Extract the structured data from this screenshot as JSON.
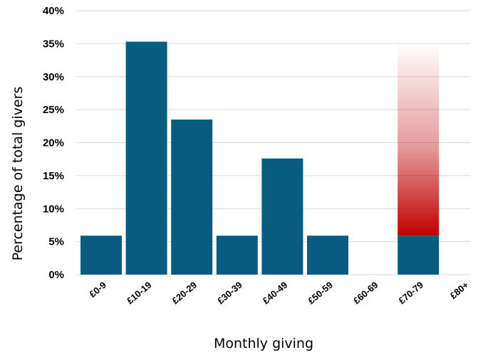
{
  "chart_data": {
    "type": "bar",
    "categories": [
      "£0-9",
      "£10-19",
      "£20-29",
      "£30-39",
      "£40-49",
      "£50-59",
      "£60-69",
      "£70-79",
      "£80+"
    ],
    "series": [
      {
        "values": [
          5.9,
          35.3,
          23.5,
          5.9,
          17.6,
          5.9,
          0,
          5.9,
          0
        ]
      }
    ],
    "highlight": {
      "category": "£70-79",
      "gradient_top": 35.3,
      "gradient_color": "#c00000"
    },
    "xlabel": "Monthly giving",
    "ylabel": "Percentage of total givers",
    "ylim": [
      0,
      40
    ],
    "yticks": [
      0,
      5,
      10,
      15,
      20,
      25,
      30,
      35,
      40
    ],
    "tick_suffix": "%",
    "grid": true,
    "bar_color": "#085c80",
    "grid_color": "#d9d9d9"
  }
}
